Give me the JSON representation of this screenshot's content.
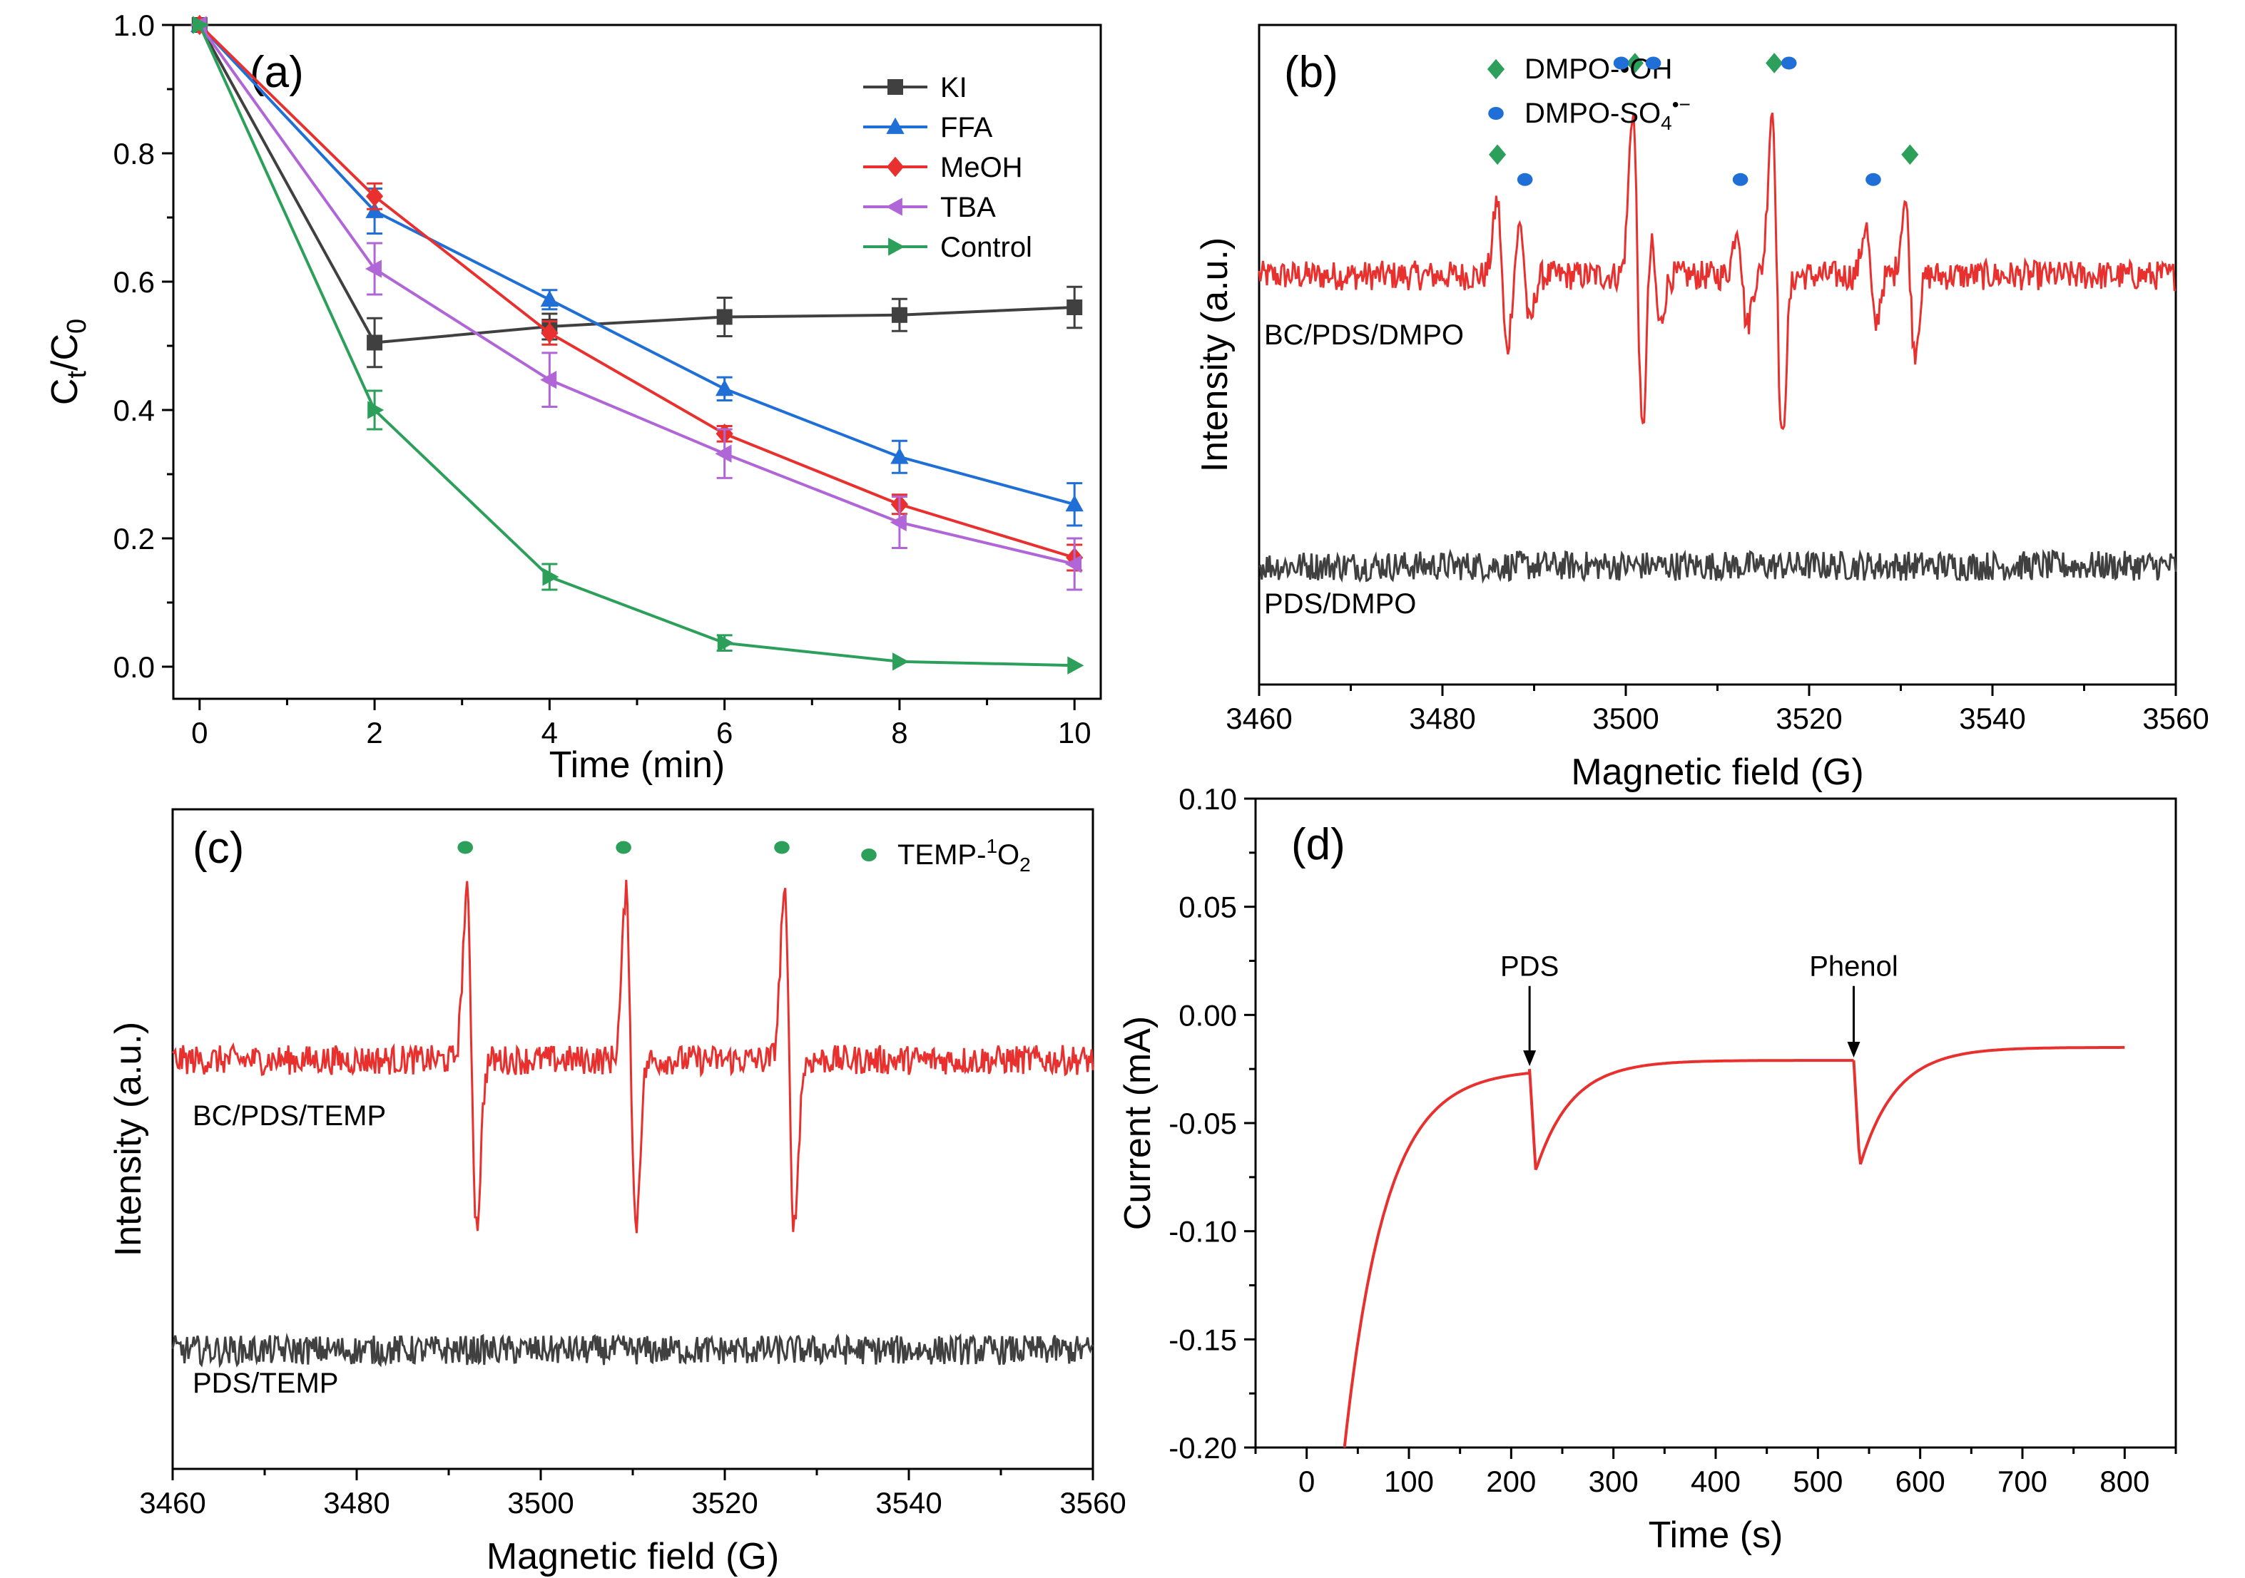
{
  "chart_data": [
    {
      "panel": "(a)",
      "type": "line",
      "xlabel": "Time (min)",
      "ylabel": "C_t/C_0",
      "ylabel_parts": [
        "C",
        "t",
        "/C",
        "0"
      ],
      "xlim": [
        -0.3,
        10.3
      ],
      "ylim": [
        -0.05,
        1.0
      ],
      "xticks": [
        0,
        2,
        4,
        6,
        8,
        10
      ],
      "yticks": [
        0.0,
        0.2,
        0.4,
        0.6,
        0.8,
        1.0
      ],
      "xtick_labels": [
        "0",
        "2",
        "4",
        "6",
        "8",
        "10"
      ],
      "ytick_labels": [
        "0.0",
        "0.2",
        "0.4",
        "0.6",
        "0.8",
        "1.0"
      ],
      "x": [
        0,
        2,
        4,
        6,
        8,
        10
      ],
      "legend_position": "top-right",
      "series": [
        {
          "name": "KI",
          "color": "#404040",
          "marker": "square",
          "values": [
            1.0,
            0.505,
            0.53,
            0.545,
            0.548,
            0.56
          ],
          "errors": [
            0,
            0.038,
            0.02,
            0.03,
            0.025,
            0.032
          ]
        },
        {
          "name": "FFA",
          "color": "#1f6fd6",
          "marker": "triangle-up",
          "values": [
            1.0,
            0.71,
            0.572,
            0.433,
            0.327,
            0.253
          ],
          "errors": [
            0,
            0.035,
            0.015,
            0.018,
            0.025,
            0.033
          ]
        },
        {
          "name": "MeOH",
          "color": "#e8312f",
          "marker": "diamond",
          "values": [
            1.0,
            0.733,
            0.52,
            0.363,
            0.253,
            0.17
          ],
          "errors": [
            0,
            0.02,
            0.018,
            0.012,
            0.015,
            0.02
          ]
        },
        {
          "name": "TBA",
          "color": "#b066d6",
          "marker": "triangle-left",
          "values": [
            1.0,
            0.62,
            0.447,
            0.332,
            0.225,
            0.16
          ],
          "errors": [
            0,
            0.04,
            0.042,
            0.038,
            0.04,
            0.04
          ]
        },
        {
          "name": "Control",
          "color": "#2ca05a",
          "marker": "triangle-right",
          "values": [
            1.0,
            0.4,
            0.14,
            0.037,
            0.008,
            0.002
          ],
          "errors": [
            0,
            0.03,
            0.02,
            0.012,
            0,
            0
          ]
        }
      ]
    },
    {
      "panel": "(b)",
      "type": "line",
      "xlabel": "Magnetic field (G)",
      "ylabel": "Intensity (a.u.)",
      "xlim": [
        3460,
        3560
      ],
      "xticks": [
        3460,
        3480,
        3500,
        3520,
        3540,
        3560
      ],
      "xtick_labels": [
        "3460",
        "3480",
        "3500",
        "3520",
        "3540",
        "3560"
      ],
      "series": [
        {
          "name": "BC/PDS/DMPO",
          "color": "#e8312f",
          "baseline": 0.62,
          "peaks": [
            {
              "center": 3486.5,
              "amp": 0.45
            },
            {
              "center": 3489.0,
              "amp": 0.3
            },
            {
              "center": 3501.3,
              "amp": 1.0
            },
            {
              "center": 3503.2,
              "amp": 0.3
            },
            {
              "center": 3516.5,
              "amp": 1.0
            },
            {
              "center": 3512.7,
              "amp": 0.3
            },
            {
              "center": 3526.7,
              "amp": 0.3
            },
            {
              "center": 3531.0,
              "amp": 0.45
            }
          ]
        },
        {
          "name": "PDS/DMPO",
          "color": "#404040",
          "baseline": 0.18,
          "peaks": []
        }
      ],
      "markers": [
        {
          "name": "DMPO-•OH",
          "legend": "DMPO-•OH",
          "color": "#2ca05a",
          "shape": "diamond",
          "positions": [
            3486.0,
            3501.0,
            3516.2,
            3531.0
          ]
        },
        {
          "name": "DMPO-SO4•−",
          "legend_base": "DMPO-SO",
          "legend_sub": "4",
          "legend_sup": "•−",
          "color": "#1f6fd6",
          "shape": "circle",
          "positions": [
            3489.0,
            3499.5,
            3503.0,
            3512.5,
            3517.8,
            3527.0
          ]
        }
      ]
    },
    {
      "panel": "(c)",
      "type": "line",
      "xlabel": "Magnetic field (G)",
      "ylabel": "Intensity (a.u.)",
      "xlim": [
        3460,
        3560
      ],
      "xticks": [
        3460,
        3480,
        3500,
        3520,
        3540,
        3560
      ],
      "xtick_labels": [
        "3460",
        "3480",
        "3500",
        "3520",
        "3540",
        "3560"
      ],
      "series": [
        {
          "name": "BC/PDS/TEMP",
          "color": "#e8312f",
          "baseline": 0.62,
          "peaks": [
            {
              "center": 3492.5,
              "amp": 1.0
            },
            {
              "center": 3509.8,
              "amp": 1.0
            },
            {
              "center": 3527.0,
              "amp": 1.0
            }
          ]
        },
        {
          "name": "PDS/TEMP",
          "color": "#404040",
          "baseline": 0.18,
          "peaks": []
        }
      ],
      "markers": [
        {
          "name": "TEMP-1O2",
          "legend_pre": "TEMP-",
          "legend_sup": "1",
          "legend_mid": "O",
          "legend_sub": "2",
          "color": "#2ca05a",
          "shape": "circle",
          "positions": [
            3491.8,
            3509.0,
            3526.2
          ]
        }
      ]
    },
    {
      "panel": "(d)",
      "type": "line",
      "xlabel": "Time (s)",
      "ylabel": "Current (mA)",
      "xlim": [
        -50,
        850
      ],
      "ylim": [
        -0.2,
        0.1
      ],
      "xticks": [
        0,
        100,
        200,
        300,
        400,
        500,
        600,
        700,
        800
      ],
      "yticks": [
        -0.2,
        -0.15,
        -0.1,
        -0.05,
        0.0,
        0.05,
        0.1
      ],
      "xtick_labels": [
        "0",
        "100",
        "200",
        "300",
        "400",
        "500",
        "600",
        "700",
        "800"
      ],
      "ytick_labels": [
        "-0.20",
        "-0.15",
        "-0.10",
        "-0.05",
        "0.00",
        "0.05",
        "0.10"
      ],
      "series": [
        {
          "name": "current",
          "color": "#e8312f",
          "start": 37,
          "end": 800,
          "segments": [
            {
              "t0": 37,
              "t1": 218,
              "kind": "rise",
              "y0": -0.2,
              "y1": -0.025
            },
            {
              "t0": 218,
              "t1": 535,
              "kind": "spike",
              "dip": -0.072,
              "y1": -0.021
            },
            {
              "t0": 535,
              "t1": 800,
              "kind": "spike",
              "dip": -0.07,
              "y1": -0.015
            }
          ]
        }
      ],
      "annotations": [
        {
          "label": "PDS",
          "x": 218,
          "y_text": 0.018,
          "y_arrow": -0.025
        },
        {
          "label": "Phenol",
          "x": 535,
          "y_text": 0.018,
          "y_arrow": -0.021
        }
      ]
    }
  ]
}
